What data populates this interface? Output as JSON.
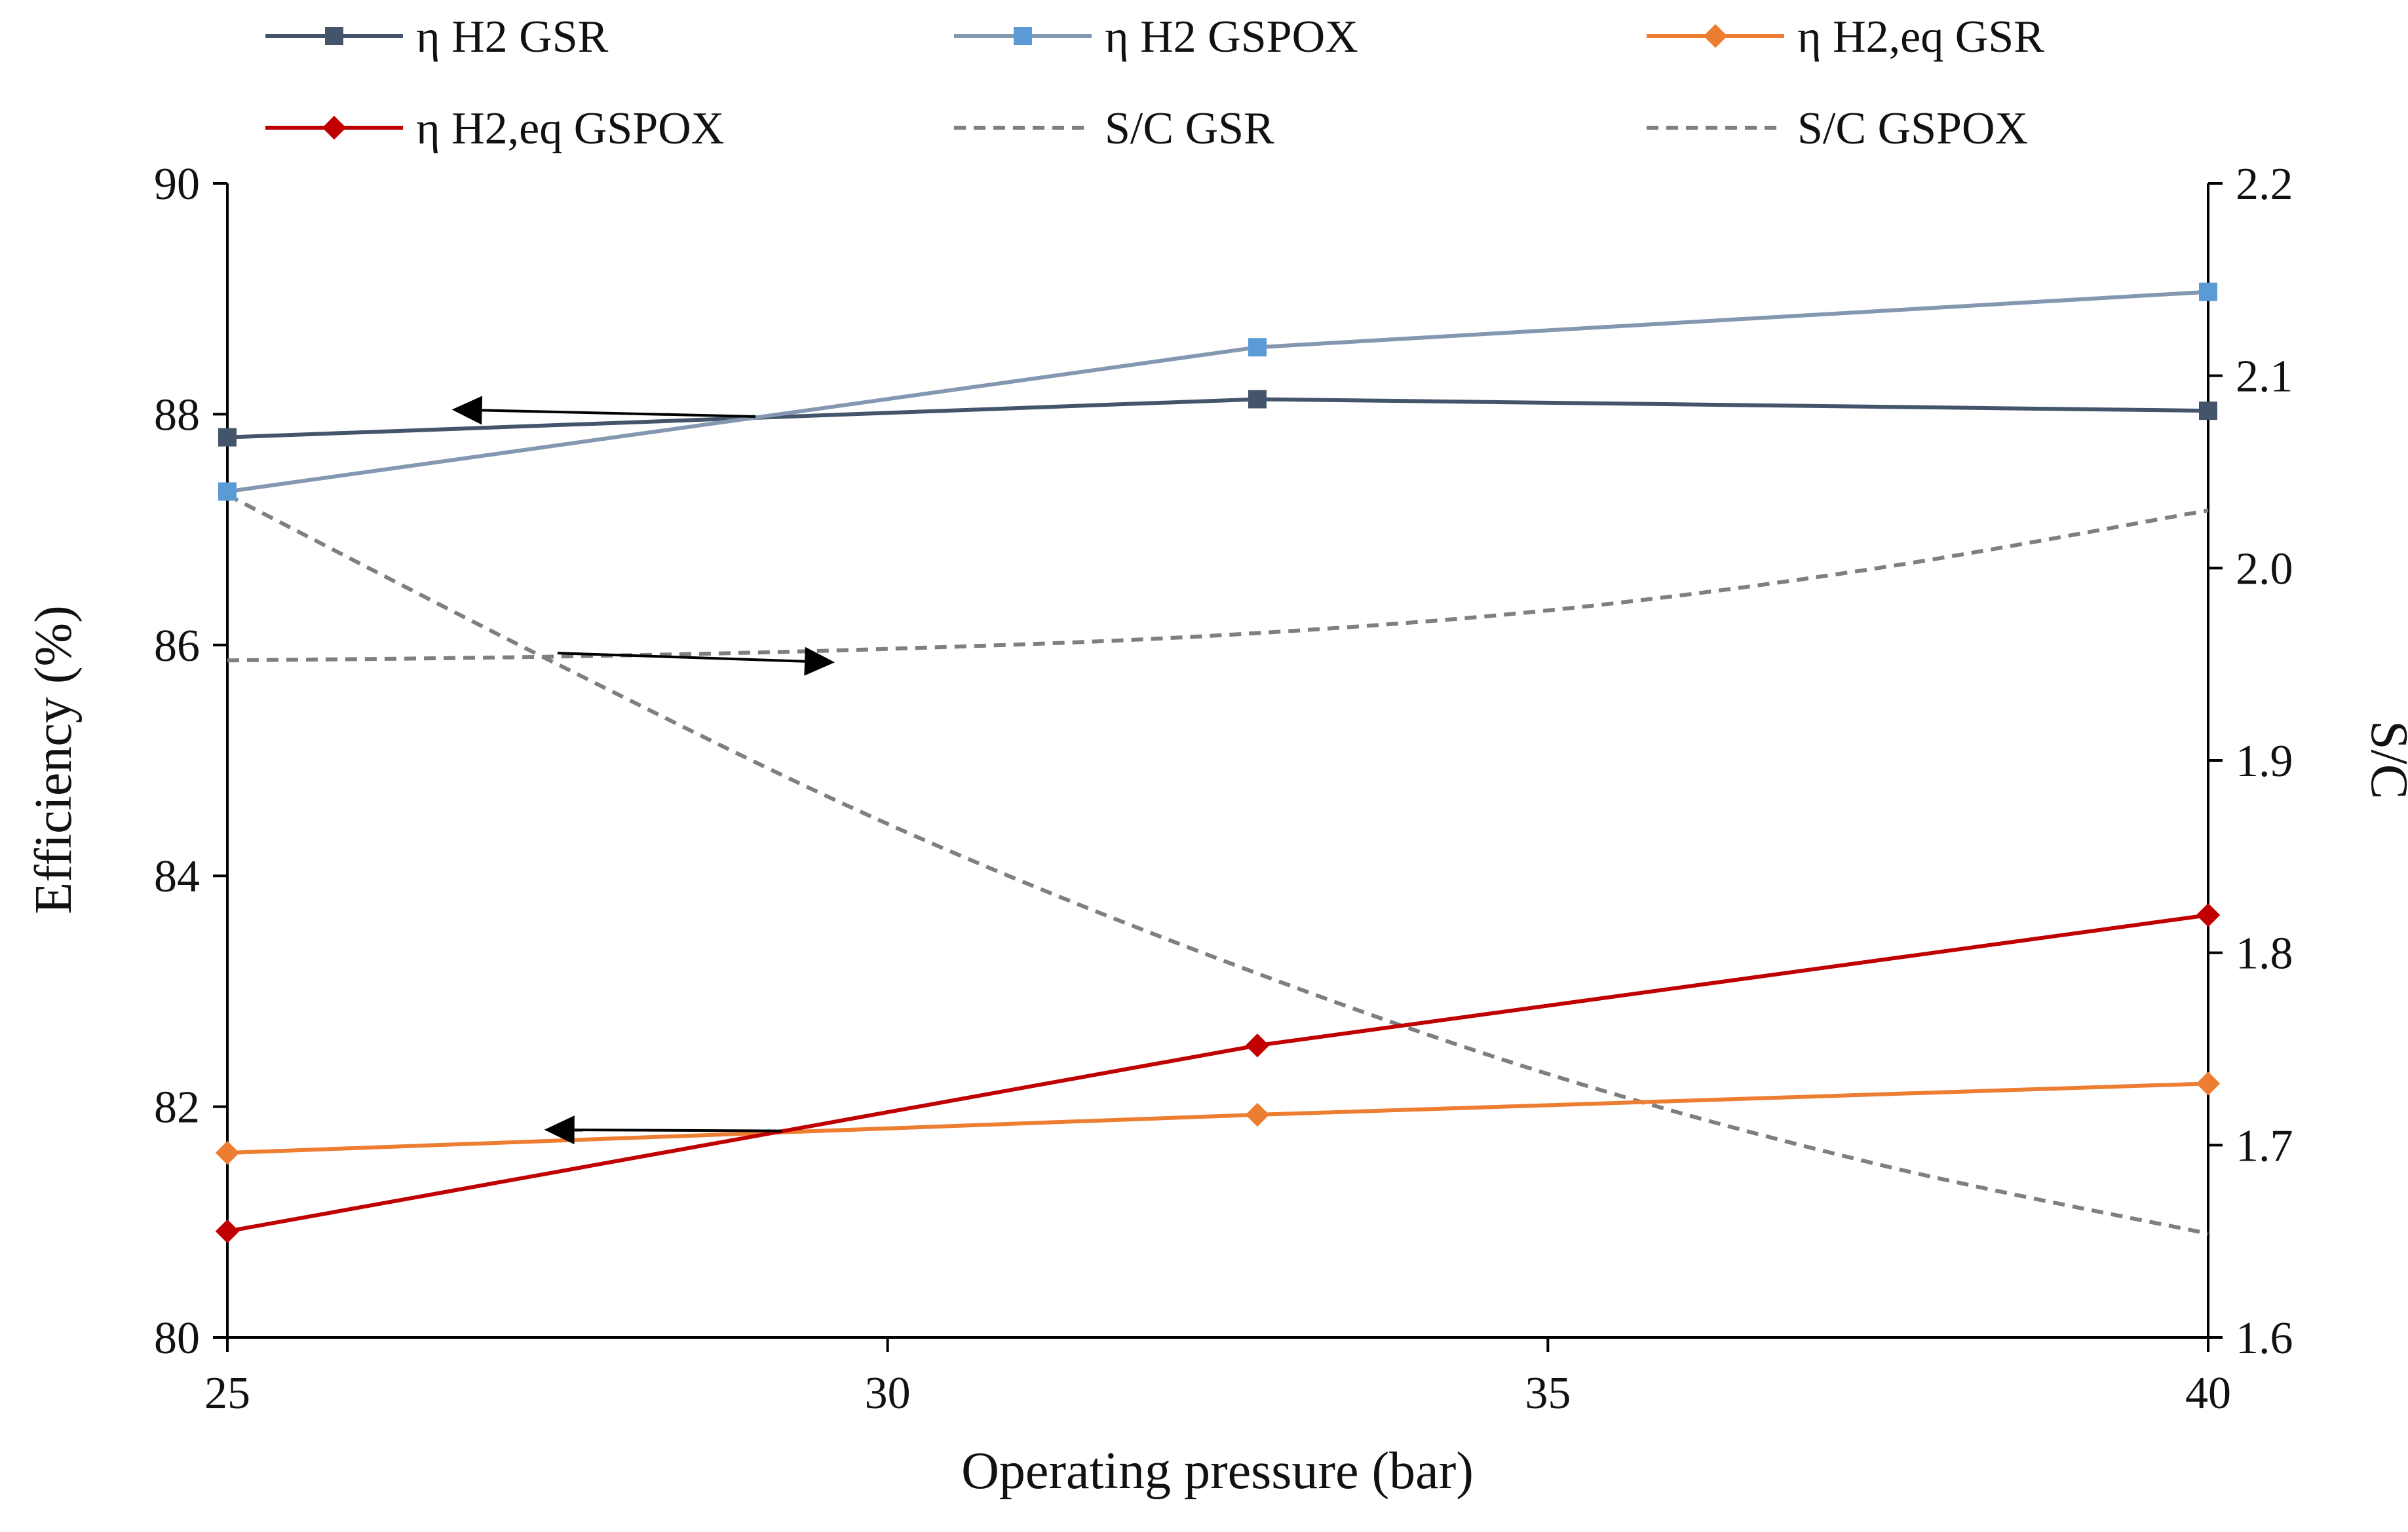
{
  "chart_data": {
    "type": "line",
    "title": "",
    "xlabel": "Operating pressure (bar)",
    "ylabel": "Efficiency (%)",
    "y2label": "S/C",
    "xlim": [
      25,
      40
    ],
    "ylim": [
      80,
      90
    ],
    "y2lim": [
      1.6,
      2.2
    ],
    "xticks": [
      25,
      30,
      35,
      40
    ],
    "xtick_labels": [
      "25",
      "30",
      "35",
      "40"
    ],
    "yticks": [
      80,
      82,
      84,
      86,
      88,
      90
    ],
    "ytick_labels": [
      "80",
      "82",
      "84",
      "86",
      "88",
      "90"
    ],
    "y2ticks": [
      1.6,
      1.7,
      1.8,
      1.9,
      2.0,
      2.1,
      2.2
    ],
    "y2tick_labels": [
      "1.6",
      "1.7",
      "1.8",
      "1.9",
      "2.0",
      "2.1",
      "2.2"
    ],
    "grid": false,
    "legend_position": "top",
    "series": [
      {
        "name": "η H2 GSR",
        "axis": "left",
        "style": "solid",
        "marker": "square",
        "color": "#44546a",
        "x": [
          25,
          32.8,
          40
        ],
        "values": [
          87.8,
          88.13,
          88.03
        ]
      },
      {
        "name": "η H2 GSPOX",
        "axis": "left",
        "style": "solid",
        "marker": "square",
        "color": "#8497b0",
        "marker_color": "#5b9bd5",
        "x": [
          25,
          32.8,
          40
        ],
        "values": [
          87.33,
          88.58,
          89.06
        ]
      },
      {
        "name": "η H2,eq GSR",
        "axis": "left",
        "style": "solid",
        "marker": "diamond",
        "color": "#ed7d31",
        "x": [
          25,
          32.8,
          40
        ],
        "values": [
          81.6,
          81.93,
          82.2
        ]
      },
      {
        "name": "η H2,eq GSPOX",
        "axis": "left",
        "style": "solid",
        "marker": "diamond",
        "color": "#c00000",
        "x": [
          25,
          32.8,
          40
        ],
        "values": [
          80.92,
          82.53,
          83.66
        ]
      },
      {
        "name": "S/C GSR",
        "axis": "right",
        "style": "dashed",
        "marker": "none",
        "color": "#7f7f7f",
        "x": [
          25,
          27.5,
          30,
          32.5,
          35,
          37.5,
          40
        ],
        "values": [
          1.952,
          1.954,
          1.958,
          1.965,
          1.978,
          2.0,
          2.03
        ]
      },
      {
        "name": "S/C GSPOX",
        "axis": "right",
        "style": "dashed",
        "marker": "none",
        "color": "#7f7f7f",
        "x": [
          25,
          27.5,
          30,
          32.5,
          35,
          37.5,
          40
        ],
        "values": [
          2.038,
          1.95,
          1.867,
          1.797,
          1.737,
          1.69,
          1.654
        ]
      }
    ],
    "annotations": [
      {
        "type": "arrow",
        "label": "points to left axis",
        "x_from": 29.0,
        "y_from": 87.98,
        "x_to": 26.7,
        "y_to": 88.04,
        "axis": "left"
      },
      {
        "type": "arrow",
        "label": "points to right axis",
        "x_from": 27.5,
        "y_from": 85.93,
        "x_to": 29.6,
        "y_to": 85.85,
        "axis": "left"
      },
      {
        "type": "arrow",
        "label": "points to left axis",
        "x_from": 29.2,
        "y_from": 81.79,
        "x_to": 27.4,
        "y_to": 81.8,
        "axis": "left"
      }
    ]
  }
}
